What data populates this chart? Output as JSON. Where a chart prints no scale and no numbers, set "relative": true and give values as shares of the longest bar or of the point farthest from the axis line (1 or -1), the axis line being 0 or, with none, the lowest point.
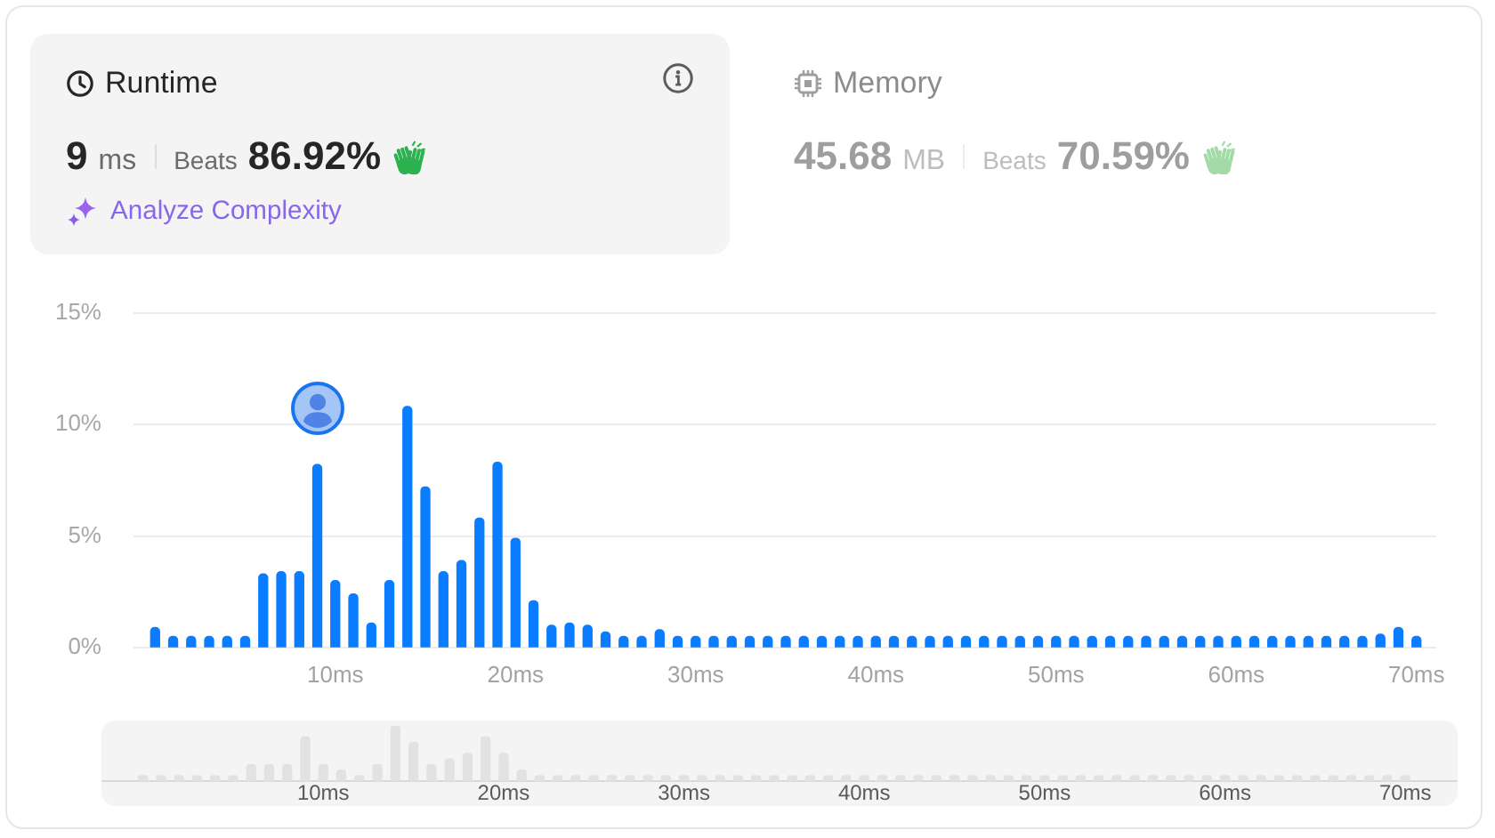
{
  "chart_data": [
    {
      "type": "other",
      "title": "Runtime",
      "annotations": [
        "9",
        "ms",
        "Beats",
        "86.92%",
        "Analyze Complexity"
      ]
    },
    {
      "type": "other",
      "title": "Memory",
      "annotations": [
        "45.68",
        "MB",
        "Beats",
        "70.59%"
      ]
    },
    {
      "type": "bar",
      "x": [
        0,
        1,
        2,
        3,
        4,
        5,
        6,
        7,
        8,
        9,
        10,
        11,
        12,
        13,
        14,
        15,
        16,
        17,
        18,
        19,
        20,
        21,
        22,
        23,
        24,
        25,
        26,
        27,
        28,
        29,
        30,
        31,
        32,
        33,
        34,
        35,
        36,
        37,
        38,
        39,
        40,
        41,
        42,
        43,
        44,
        45,
        46,
        47,
        48,
        49,
        50,
        51,
        52,
        53,
        54,
        55,
        56,
        57,
        58,
        59,
        60,
        61,
        62,
        63,
        64,
        65,
        66,
        67,
        68,
        69,
        70
      ],
      "values": [
        0.9,
        0.5,
        0.5,
        0.5,
        0.5,
        0.5,
        3.3,
        3.4,
        3.4,
        8.2,
        3.0,
        2.4,
        1.1,
        3.0,
        10.8,
        7.2,
        3.4,
        3.9,
        5.8,
        8.3,
        4.9,
        2.1,
        1.0,
        1.1,
        1.0,
        0.7,
        0.5,
        0.5,
        0.8,
        0.5,
        0.5,
        0.5,
        0.5,
        0.5,
        0.5,
        0.5,
        0.5,
        0.5,
        0.5,
        0.5,
        0.5,
        0.5,
        0.5,
        0.5,
        0.5,
        0.5,
        0.5,
        0.5,
        0.5,
        0.5,
        0.5,
        0.5,
        0.5,
        0.5,
        0.5,
        0.5,
        0.5,
        0.5,
        0.5,
        0.5,
        0.5,
        0.5,
        0.5,
        0.5,
        0.5,
        0.5,
        0.5,
        0.5,
        0.6,
        0.9,
        0.5
      ],
      "color": "#0a7cff",
      "xlim": [
        -1.2,
        71.1
      ],
      "xticks": [
        {
          "value": 10,
          "label": "10ms"
        },
        {
          "value": 20,
          "label": "20ms"
        },
        {
          "value": 30,
          "label": "30ms"
        },
        {
          "value": 40,
          "label": "40ms"
        },
        {
          "value": 50,
          "label": "50ms"
        },
        {
          "value": 60,
          "label": "60ms"
        },
        {
          "value": 70,
          "label": "70ms"
        }
      ],
      "ylim": [
        0,
        15
      ],
      "yticks": [
        {
          "value": 0,
          "label": "0%"
        },
        {
          "value": 5,
          "label": "5%"
        },
        {
          "value": 10,
          "label": "10%"
        },
        {
          "value": 15,
          "label": "15%"
        }
      ],
      "grid": "y"
    },
    {
      "type": "bar",
      "relative": true,
      "x": [
        0,
        1,
        2,
        3,
        4,
        5,
        6,
        7,
        8,
        9,
        10,
        11,
        12,
        13,
        14,
        15,
        16,
        17,
        18,
        19,
        20,
        21,
        22,
        23,
        24,
        25,
        26,
        27,
        28,
        29,
        30,
        31,
        32,
        33,
        34,
        35,
        36,
        37,
        38,
        39,
        40,
        41,
        42,
        43,
        44,
        45,
        46,
        47,
        48,
        49,
        50,
        51,
        52,
        53,
        54,
        55,
        56,
        57,
        58,
        59,
        60,
        61,
        62,
        63,
        64,
        65,
        66,
        67,
        68,
        69,
        70
      ],
      "values": [
        0.1,
        0.1,
        0.1,
        0.1,
        0.1,
        0.1,
        0.3,
        0.3,
        0.3,
        0.8,
        0.3,
        0.2,
        0.1,
        0.3,
        1,
        0.7,
        0.3,
        0.4,
        0.5,
        0.8,
        0.5,
        0.2,
        0.1,
        0.1,
        0.1,
        0.1,
        0.1,
        0.1,
        0.1,
        0.1,
        0.1,
        0.1,
        0.1,
        0.1,
        0.1,
        0.1,
        0.1,
        0.1,
        0.1,
        0.1,
        0.1,
        0.1,
        0.1,
        0.1,
        0.1,
        0.1,
        0.1,
        0.1,
        0.1,
        0.1,
        0.1,
        0.1,
        0.1,
        0.1,
        0.1,
        0.1,
        0.1,
        0.1,
        0.1,
        0.1,
        0.1,
        0.1,
        0.1,
        0.1,
        0.1,
        0.1,
        0.1,
        0.1,
        0.1,
        0.1,
        0.1
      ],
      "color": "#e2e2e2",
      "xlim": [
        -2.3,
        72.9
      ],
      "xticks": [
        {
          "value": 10,
          "label": "10ms"
        },
        {
          "value": 20,
          "label": "20ms"
        },
        {
          "value": 30,
          "label": "30ms"
        },
        {
          "value": 40,
          "label": "40ms"
        },
        {
          "value": 50,
          "label": "50ms"
        },
        {
          "value": 60,
          "label": "60ms"
        },
        {
          "value": 70,
          "label": "70ms"
        }
      ]
    }
  ]
}
